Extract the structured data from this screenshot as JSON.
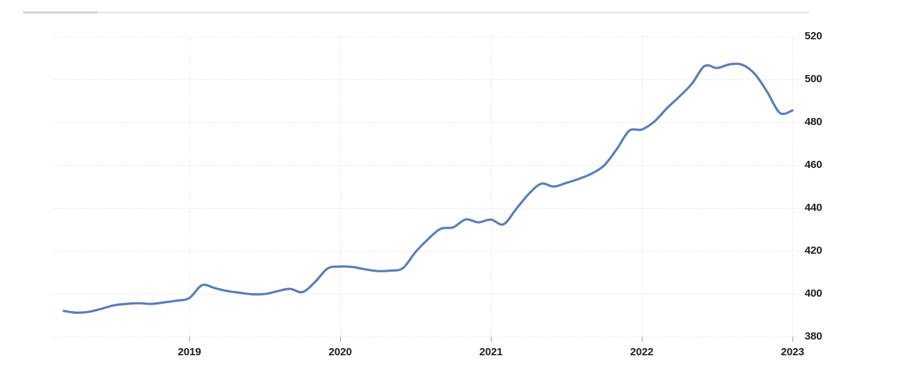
{
  "chart_data": {
    "type": "line",
    "title": "",
    "xlabel": "",
    "ylabel": "",
    "x": [
      "2018-03",
      "2018-04",
      "2018-05",
      "2018-06",
      "2018-07",
      "2018-08",
      "2018-09",
      "2018-10",
      "2018-11",
      "2018-12",
      "2019-01",
      "2019-02",
      "2019-03",
      "2019-04",
      "2019-05",
      "2019-06",
      "2019-07",
      "2019-08",
      "2019-09",
      "2019-10",
      "2019-11",
      "2019-12",
      "2020-01",
      "2020-02",
      "2020-03",
      "2020-04",
      "2020-05",
      "2020-06",
      "2020-07",
      "2020-08",
      "2020-09",
      "2020-10",
      "2020-11",
      "2020-12",
      "2021-01",
      "2021-02",
      "2021-03",
      "2021-04",
      "2021-05",
      "2021-06",
      "2021-07",
      "2021-08",
      "2021-09",
      "2021-10",
      "2021-11",
      "2021-12",
      "2022-01",
      "2022-02",
      "2022-03",
      "2022-04",
      "2022-05",
      "2022-06",
      "2022-07",
      "2022-08",
      "2022-09",
      "2022-10",
      "2022-11",
      "2022-12",
      "2023-01"
    ],
    "values": [
      392.0,
      391.2,
      391.6,
      393.0,
      394.6,
      395.3,
      395.6,
      395.3,
      396.0,
      396.8,
      398.0,
      404.0,
      402.7,
      401.3,
      400.5,
      399.8,
      399.9,
      401.2,
      402.3,
      400.8,
      405.5,
      411.8,
      412.7,
      412.5,
      411.4,
      410.6,
      410.8,
      412.0,
      419.5,
      425.5,
      430.3,
      431.0,
      434.7,
      433.3,
      434.6,
      432.4,
      439.5,
      446.5,
      451.3,
      450.0,
      451.7,
      453.6,
      456.0,
      459.8,
      467.3,
      476.0,
      476.6,
      480.3,
      486.5,
      492.0,
      498.0,
      506.2,
      505.3,
      507.0,
      506.8,
      502.5,
      494.0,
      484.3,
      485.5
    ],
    "ylim": [
      380,
      520
    ],
    "y_tick_labels": [
      "520",
      "500",
      "480",
      "460",
      "440",
      "420",
      "400",
      "380"
    ],
    "y_tick_values": [
      520,
      500,
      480,
      460,
      440,
      420,
      400,
      380
    ],
    "x_tick_labels": [
      "2019",
      "2020",
      "2021",
      "2022",
      "2023"
    ],
    "x_tick_years": [
      2019,
      2020,
      2021,
      2022,
      2023
    ],
    "grid": true,
    "legend_position": "none",
    "line_color": "#5a7eb5",
    "grid_color": "#d2d2d2",
    "tick_color": "#9b9b9b",
    "label_color": "#1f1f1f"
  }
}
